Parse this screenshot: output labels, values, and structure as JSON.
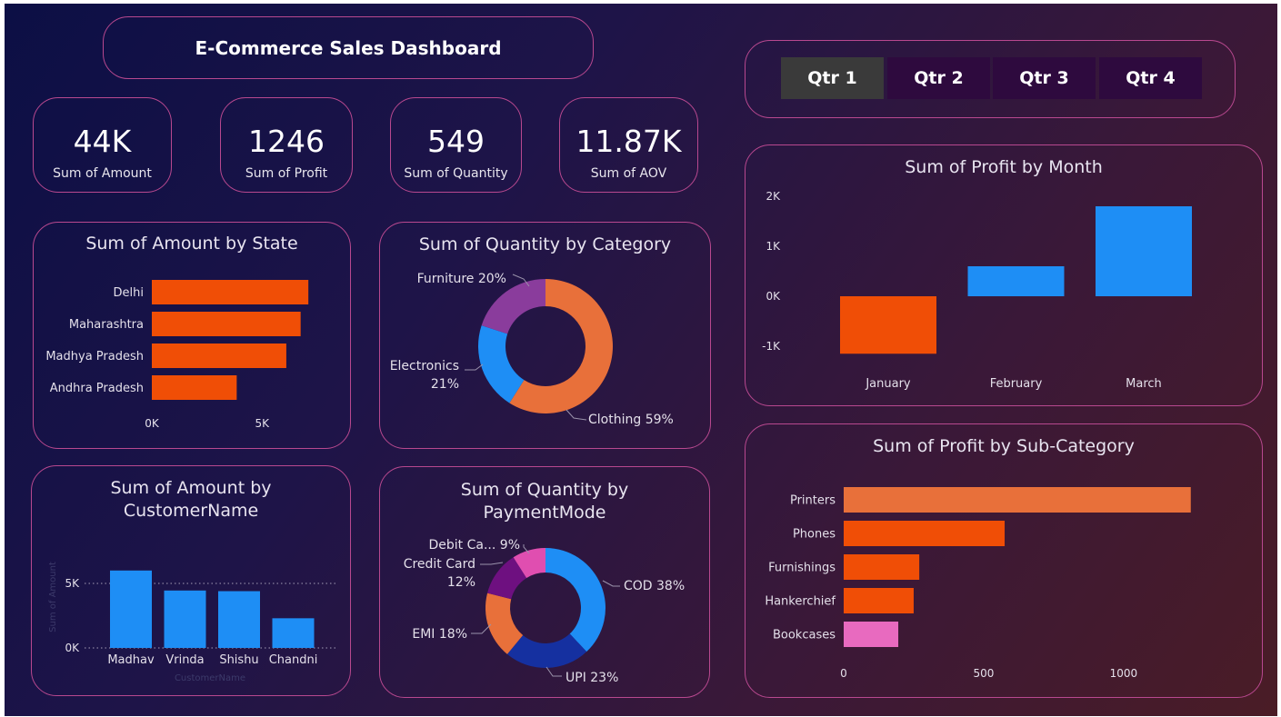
{
  "header": {
    "title": "E-Commerce Sales Dashboard"
  },
  "kpis": [
    {
      "value": "44K",
      "label": "Sum of Amount"
    },
    {
      "value": "1246",
      "label": "Sum of Profit"
    },
    {
      "value": "549",
      "label": "Sum of Quantity"
    },
    {
      "value": "11.87K",
      "label": "Sum of AOV"
    }
  ],
  "slicer": {
    "items": [
      "Qtr 1",
      "Qtr 2",
      "Qtr 3",
      "Qtr 4"
    ],
    "selected": "Qtr 1",
    "selected_color": "#3a3a3a",
    "unselected_color": "#2e0a3e"
  },
  "chart_data": [
    {
      "id": "amount_by_state",
      "type": "bar",
      "orientation": "horizontal",
      "title": "Sum of Amount by State",
      "categories": [
        "Delhi",
        "Maharashtra",
        "Madhya Pradesh",
        "Andhra Pradesh"
      ],
      "values": [
        7100,
        6750,
        6100,
        3850
      ],
      "xticks": [
        {
          "value": 0,
          "label": "0K"
        },
        {
          "value": 5000,
          "label": "5K"
        }
      ],
      "xlim": [
        0,
        8000
      ],
      "color": "#f04e06"
    },
    {
      "id": "quantity_by_category",
      "type": "pie",
      "donut": true,
      "title": "Sum of Quantity by Category",
      "slices": [
        {
          "name": "Clothing",
          "value": 59,
          "label": "Clothing 59%",
          "color": "#e8703a"
        },
        {
          "name": "Electronics",
          "value": 21,
          "label_lines": [
            "Electronics",
            "21%"
          ],
          "color": "#1e8ef5"
        },
        {
          "name": "Furniture",
          "value": 20,
          "label": "Furniture 20%",
          "color": "#8a3c9c"
        }
      ]
    },
    {
      "id": "amount_by_customer",
      "type": "bar",
      "orientation": "vertical",
      "title": "Sum of Amount by CustomerName",
      "title_lines": [
        "Sum of Amount by",
        "CustomerName"
      ],
      "categories": [
        "Madhav",
        "Vrinda",
        "Shishu",
        "Chandni"
      ],
      "values": [
        6000,
        4450,
        4400,
        2300
      ],
      "xlabel": "CustomerName",
      "ylabel": "Sum of Amount",
      "yticks": [
        {
          "value": 0,
          "label": "0K"
        },
        {
          "value": 5000,
          "label": "5K"
        }
      ],
      "ylim": [
        0,
        6500
      ],
      "color": "#1e8ef5"
    },
    {
      "id": "quantity_by_paymentmode",
      "type": "pie",
      "donut": true,
      "title": "Sum of Quantity by PaymentMode",
      "title_lines": [
        "Sum of Quantity by",
        "PaymentMode"
      ],
      "slices": [
        {
          "name": "COD",
          "value": 38,
          "label": "COD 38%",
          "color": "#1e8ef5"
        },
        {
          "name": "UPI",
          "value": 23,
          "label": "UPI 23%",
          "color": "#1530a0"
        },
        {
          "name": "EMI",
          "value": 18,
          "label": "EMI 18%",
          "color": "#e8703a"
        },
        {
          "name": "Credit Card",
          "value": 12,
          "label_lines": [
            "Credit Card",
            "12%"
          ],
          "color": "#6e1080"
        },
        {
          "name": "Debit Card",
          "value": 9,
          "label": "Debit Ca... 9%",
          "color": "#e04eb0"
        }
      ]
    },
    {
      "id": "profit_by_month",
      "type": "bar",
      "orientation": "vertical",
      "title": "Sum of Profit by Month",
      "categories": [
        "January",
        "February",
        "March"
      ],
      "values": [
        -1150,
        600,
        1800
      ],
      "yticks": [
        {
          "value": -1000,
          "label": "-1K"
        },
        {
          "value": 0,
          "label": "0K"
        },
        {
          "value": 1000,
          "label": "1K"
        },
        {
          "value": 2000,
          "label": "2K"
        }
      ],
      "ylim": [
        -1000,
        2000
      ],
      "colors": [
        "#f04e06",
        "#1e8ef5",
        "#1e8ef5"
      ]
    },
    {
      "id": "profit_by_subcategory",
      "type": "bar",
      "orientation": "horizontal",
      "title": "Sum of Profit by Sub-Category",
      "categories": [
        "Printers",
        "Phones",
        "Furnishings",
        "Hankerchief",
        "Bookcases"
      ],
      "values": [
        1240,
        575,
        270,
        250,
        195
      ],
      "xticks": [
        {
          "value": 0,
          "label": "0"
        },
        {
          "value": 500,
          "label": "500"
        },
        {
          "value": 1000,
          "label": "1000"
        }
      ],
      "xlim": [
        0,
        1270
      ],
      "colors": [
        "#e8703a",
        "#f04e06",
        "#f04e06",
        "#f04e06",
        "#e86abf"
      ]
    }
  ]
}
